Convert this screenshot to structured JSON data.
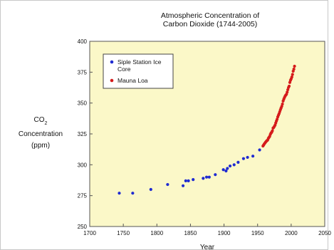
{
  "chart_data": {
    "type": "scatter",
    "title_lines": [
      "Atmospheric Concentration of",
      "Carbon Dioxide (1744-2005)"
    ],
    "ylabel": {
      "main": "CO",
      "subscript": "2",
      "line2": "Concentration",
      "line3": "(ppm)"
    },
    "xlabel": "Year",
    "xlim": [
      1700,
      2050
    ],
    "ylim": [
      250,
      400
    ],
    "x_ticks": [
      1700,
      1750,
      1800,
      1850,
      1900,
      1950,
      2000,
      2050
    ],
    "y_ticks": [
      250,
      275,
      300,
      325,
      350,
      375,
      400
    ],
    "grid": false,
    "legend_position": "top-left",
    "colors": {
      "plot_background": "#fbf8c8",
      "siple": "#1f2bd1",
      "mauna": "#d51b1b"
    },
    "series": [
      {
        "name": "Siple Station Ice Core",
        "legend_lines": [
          "Siple Station Ice",
          "Core"
        ],
        "color": "#1f2bd1",
        "points": [
          [
            1744,
            277
          ],
          [
            1764,
            277
          ],
          [
            1791,
            280
          ],
          [
            1816,
            284
          ],
          [
            1839,
            283
          ],
          [
            1843,
            287
          ],
          [
            1847,
            287
          ],
          [
            1854,
            288
          ],
          [
            1869,
            289
          ],
          [
            1874,
            290
          ],
          [
            1878,
            290
          ],
          [
            1887,
            292
          ],
          [
            1899,
            296
          ],
          [
            1903,
            295
          ],
          [
            1905,
            297
          ],
          [
            1909,
            299
          ],
          [
            1915,
            300
          ],
          [
            1921,
            302
          ],
          [
            1929,
            305
          ],
          [
            1935,
            306
          ],
          [
            1943,
            307
          ],
          [
            1953,
            312
          ]
        ]
      },
      {
        "name": "Mauna Loa",
        "legend_lines": [
          "Mauna Loa"
        ],
        "color": "#d51b1b",
        "points": [
          [
            1958,
            315.2
          ],
          [
            1959,
            316
          ],
          [
            1960,
            316.9
          ],
          [
            1961,
            317.6
          ],
          [
            1962,
            318.4
          ],
          [
            1963,
            319
          ],
          [
            1964,
            319.6
          ],
          [
            1965,
            320
          ],
          [
            1966,
            321.4
          ],
          [
            1967,
            322.2
          ],
          [
            1968,
            323
          ],
          [
            1969,
            324.6
          ],
          [
            1970,
            325.7
          ],
          [
            1971,
            326.3
          ],
          [
            1972,
            327.5
          ],
          [
            1973,
            329.7
          ],
          [
            1974,
            330.2
          ],
          [
            1975,
            331.1
          ],
          [
            1976,
            332.1
          ],
          [
            1977,
            333.8
          ],
          [
            1978,
            335.4
          ],
          [
            1979,
            336.8
          ],
          [
            1980,
            338.7
          ],
          [
            1981,
            340.1
          ],
          [
            1982,
            341.4
          ],
          [
            1983,
            343
          ],
          [
            1984,
            344.6
          ],
          [
            1985,
            346
          ],
          [
            1986,
            347.4
          ],
          [
            1987,
            349.2
          ],
          [
            1988,
            351.6
          ],
          [
            1989,
            353.1
          ],
          [
            1990,
            354.4
          ],
          [
            1991,
            355.6
          ],
          [
            1992,
            356.4
          ],
          [
            1993,
            357.1
          ],
          [
            1994,
            358.8
          ],
          [
            1995,
            360.8
          ],
          [
            1996,
            362.6
          ],
          [
            1997,
            363.7
          ],
          [
            1998,
            366.7
          ],
          [
            1999,
            368.4
          ],
          [
            2000,
            369.6
          ],
          [
            2001,
            371.1
          ],
          [
            2002,
            373.2
          ],
          [
            2003,
            375.8
          ],
          [
            2004,
            377.5
          ],
          [
            2005,
            379.8
          ]
        ]
      }
    ]
  }
}
